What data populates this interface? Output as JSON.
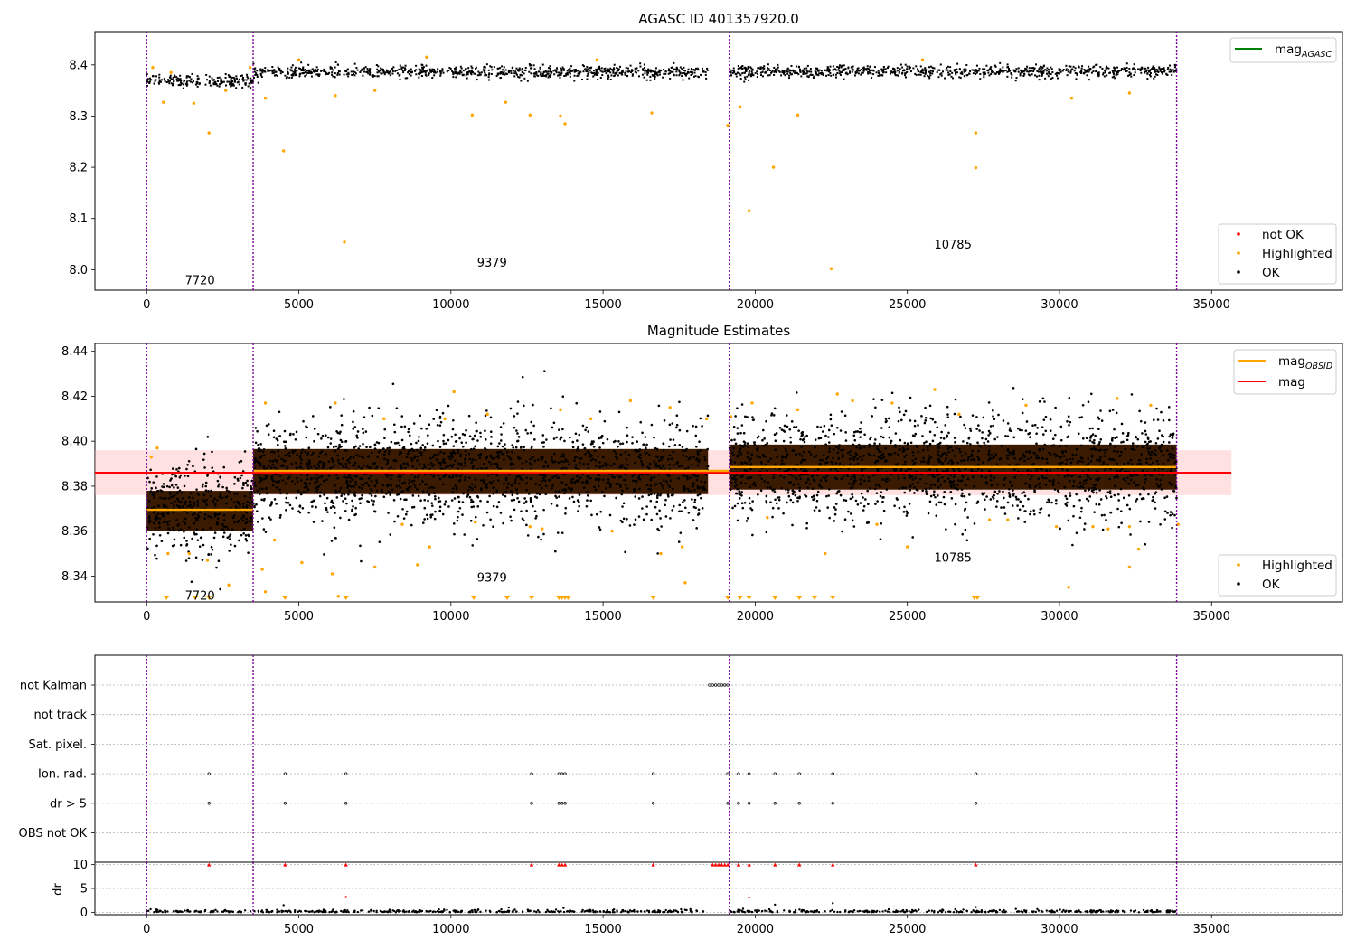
{
  "chart_data": [
    {
      "type": "scatter",
      "title": "AGASC ID 401357920.0",
      "xlabel": "",
      "ylabel": "",
      "xlim": [
        -1700,
        39300
      ],
      "ylim": [
        7.96,
        8.465
      ],
      "xticks": [
        0,
        5000,
        10000,
        15000,
        20000,
        25000,
        30000,
        35000
      ],
      "yticks": [
        8.0,
        8.1,
        8.2,
        8.3,
        8.4
      ],
      "ytick_labels": [
        "8.0",
        "8.1",
        "8.2",
        "8.3",
        "8.4"
      ],
      "obs_boundaries": [
        0,
        3500,
        19150,
        33850
      ],
      "obs_labels": [
        {
          "x": 1750,
          "y": 7.98,
          "text": "7720"
        },
        {
          "x": 11350,
          "y": 8.015,
          "text": "9379"
        },
        {
          "x": 26500,
          "y": 8.05,
          "text": "10785"
        }
      ],
      "legend_top": [
        {
          "label": "mag",
          "sub": "AGASC",
          "color": "#008000",
          "kind": "line"
        }
      ],
      "legend_bottom": [
        {
          "label": "not OK",
          "color": "#ff0000",
          "kind": "dot"
        },
        {
          "label": "Highlighted",
          "color": "#ffa500",
          "kind": "dot"
        },
        {
          "label": "OK",
          "color": "#000000",
          "kind": "dot"
        }
      ],
      "segments": [
        {
          "x0": 0,
          "x1": 3500,
          "mean": 8.369,
          "spread": 0.011
        },
        {
          "x0": 3500,
          "x1": 18450,
          "mean": 8.386,
          "spread": 0.011
        },
        {
          "x0": 19150,
          "x1": 33850,
          "mean": 8.387,
          "spread": 0.011
        }
      ],
      "highlighted": [
        [
          200,
          8.395
        ],
        [
          550,
          8.327
        ],
        [
          800,
          8.385
        ],
        [
          1550,
          8.325
        ],
        [
          2050,
          8.267
        ],
        [
          2600,
          8.35
        ],
        [
          3400,
          8.395
        ],
        [
          4500,
          8.232
        ],
        [
          3900,
          8.335
        ],
        [
          6500,
          8.054
        ],
        [
          6200,
          8.34
        ],
        [
          7500,
          8.35
        ],
        [
          10700,
          8.302
        ],
        [
          11800,
          8.327
        ],
        [
          12600,
          8.302
        ],
        [
          13600,
          8.3
        ],
        [
          13750,
          8.285
        ],
        [
          16600,
          8.306
        ],
        [
          19100,
          8.282
        ],
        [
          19500,
          8.318
        ],
        [
          19800,
          8.115
        ],
        [
          20600,
          8.2
        ],
        [
          21400,
          8.302
        ],
        [
          22500,
          8.002
        ],
        [
          27250,
          8.267
        ],
        [
          27250,
          8.199
        ],
        [
          30400,
          8.335
        ],
        [
          32300,
          8.345
        ],
        [
          5000,
          8.41
        ],
        [
          9200,
          8.415
        ],
        [
          14800,
          8.41
        ],
        [
          25500,
          8.41
        ]
      ]
    },
    {
      "type": "scatter",
      "title": "Magnitude Estimates",
      "xlabel": "",
      "ylabel": "",
      "xlim": [
        -1700,
        39300
      ],
      "ylim": [
        8.3285,
        8.4435
      ],
      "xticks": [
        0,
        5000,
        10000,
        15000,
        20000,
        25000,
        30000,
        35000
      ],
      "yticks": [
        8.34,
        8.36,
        8.38,
        8.4,
        8.42,
        8.44
      ],
      "ytick_labels": [
        "8.34",
        "8.36",
        "8.38",
        "8.40",
        "8.42",
        "8.44"
      ],
      "obs_boundaries": [
        0,
        3500,
        19150,
        33850
      ],
      "obs_labels": [
        {
          "x": 1750,
          "y": 8.3315,
          "text": "7720"
        },
        {
          "x": 11350,
          "y": 8.3395,
          "text": "9379"
        },
        {
          "x": 26500,
          "y": 8.3485,
          "text": "10785"
        }
      ],
      "mag": 8.386,
      "mag_band": [
        8.376,
        8.396
      ],
      "mag_band_x": [
        -1700,
        35650
      ],
      "mag_obsid": [
        {
          "x0": 0,
          "x1": 3500,
          "y": 8.3695
        },
        {
          "x0": 3500,
          "x1": 19150,
          "y": 8.3868
        },
        {
          "x0": 19150,
          "x1": 33850,
          "y": 8.3885
        }
      ],
      "legend_top": [
        {
          "label": "mag",
          "sub": "OBSID",
          "color": "#ffa500",
          "kind": "line"
        },
        {
          "label": "mag",
          "sub": "",
          "color": "#ff0000",
          "kind": "line"
        }
      ],
      "legend_bottom": [
        {
          "label": "Highlighted",
          "color": "#ffa500",
          "kind": "dot"
        },
        {
          "label": "OK",
          "color": "#000000",
          "kind": "dot"
        }
      ],
      "segments": [
        {
          "x0": 0,
          "x1": 3500,
          "mean": 8.369,
          "spread": 0.0105
        },
        {
          "x0": 3500,
          "x1": 18450,
          "mean": 8.3865,
          "spread": 0.0118
        },
        {
          "x0": 19150,
          "x1": 33850,
          "mean": 8.3885,
          "spread": 0.0118
        }
      ],
      "highlighted": [
        [
          150,
          8.393
        ],
        [
          350,
          8.397
        ],
        [
          700,
          8.35
        ],
        [
          1400,
          8.35
        ],
        [
          2000,
          8.347
        ],
        [
          2700,
          8.336
        ],
        [
          3900,
          8.417
        ],
        [
          3800,
          8.343
        ],
        [
          3900,
          8.333
        ],
        [
          4200,
          8.356
        ],
        [
          5100,
          8.346
        ],
        [
          6100,
          8.341
        ],
        [
          6300,
          8.331
        ],
        [
          6200,
          8.417
        ],
        [
          7500,
          8.344
        ],
        [
          7800,
          8.41
        ],
        [
          8400,
          8.363
        ],
        [
          8900,
          8.345
        ],
        [
          9300,
          8.353
        ],
        [
          9800,
          8.41
        ],
        [
          10100,
          8.422
        ],
        [
          10800,
          8.364
        ],
        [
          11200,
          8.412
        ],
        [
          12600,
          8.362
        ],
        [
          13000,
          8.361
        ],
        [
          13600,
          8.414
        ],
        [
          14600,
          8.41
        ],
        [
          15300,
          8.36
        ],
        [
          15900,
          8.418
        ],
        [
          16900,
          8.35
        ],
        [
          17200,
          8.415
        ],
        [
          17600,
          8.353
        ],
        [
          17700,
          8.337
        ],
        [
          18400,
          8.41
        ],
        [
          19200,
          8.411
        ],
        [
          19900,
          8.417
        ],
        [
          20400,
          8.366
        ],
        [
          21400,
          8.414
        ],
        [
          22300,
          8.35
        ],
        [
          22700,
          8.421
        ],
        [
          23200,
          8.418
        ],
        [
          24000,
          8.363
        ],
        [
          24500,
          8.417
        ],
        [
          25000,
          8.353
        ],
        [
          25900,
          8.423
        ],
        [
          26700,
          8.412
        ],
        [
          27700,
          8.365
        ],
        [
          28300,
          8.365
        ],
        [
          28900,
          8.416
        ],
        [
          29900,
          8.362
        ],
        [
          30300,
          8.335
        ],
        [
          31100,
          8.362
        ],
        [
          31600,
          8.361
        ],
        [
          31900,
          8.419
        ],
        [
          32300,
          8.362
        ],
        [
          32300,
          8.344
        ],
        [
          32600,
          8.352
        ],
        [
          33000,
          8.416
        ],
        [
          33900,
          8.363
        ]
      ],
      "down_markers": [
        650,
        1600,
        2050,
        4550,
        6550,
        10750,
        11850,
        12650,
        13550,
        13650,
        13750,
        13850,
        16650,
        19100,
        19500,
        19800,
        20650,
        21450,
        21950,
        22550,
        27200,
        27300
      ]
    },
    {
      "type": "scatter",
      "title": "",
      "xlabel": "",
      "ylabel": "",
      "xlim": [
        -1700,
        39300
      ],
      "xticks": [
        0,
        5000,
        10000,
        15000,
        20000,
        25000,
        30000,
        35000
      ],
      "obs_boundaries": [
        0,
        3500,
        19150,
        33850
      ],
      "flags": [
        {
          "label": "not Kalman",
          "x": [
            18500,
            18600,
            18700,
            18800,
            18900,
            19000,
            19100
          ]
        },
        {
          "label": "not track",
          "x": []
        },
        {
          "label": "Sat. pixel.",
          "x": []
        },
        {
          "label": "Ion. rad.",
          "x": [
            2050,
            4550,
            6550,
            12650,
            13550,
            13650,
            13750,
            16650,
            19100,
            19450,
            19800,
            20650,
            21450,
            22550,
            27250
          ]
        },
        {
          "label": "dr > 5",
          "x": [
            2050,
            4550,
            6550,
            12650,
            13550,
            13650,
            13750,
            16650,
            19100,
            19450,
            19800,
            20650,
            21450,
            22550,
            27250
          ]
        },
        {
          "label": "OBS not OK",
          "x": []
        }
      ]
    },
    {
      "type": "scatter",
      "title": "",
      "xlabel": "",
      "ylabel": "dr",
      "xlim": [
        -1700,
        39300
      ],
      "ylim": [
        -0.5,
        10.5
      ],
      "xticks": [
        0,
        5000,
        10000,
        15000,
        20000,
        25000,
        30000,
        35000
      ],
      "xtick_labels": [
        "0",
        "5000",
        "10000",
        "15000",
        "20000",
        "25000",
        "30000",
        "35000"
      ],
      "yticks": [
        0,
        5,
        10
      ],
      "ytick_labels": [
        "0",
        "5",
        "10"
      ],
      "obs_boundaries": [
        0,
        3500,
        19150,
        33850
      ],
      "clipped_x": [
        2050,
        4550,
        6550,
        12650,
        13550,
        13650,
        13750,
        16650,
        18600,
        18700,
        18800,
        18900,
        19000,
        19100,
        19450,
        19800,
        20650,
        21450,
        22550,
        27250
      ],
      "outliers": [
        [
          4500,
          1.5
        ],
        [
          6550,
          3.2
        ],
        [
          19800,
          3.1
        ],
        [
          20650,
          1.6
        ],
        [
          22550,
          1.9
        ],
        [
          27250,
          1.1
        ],
        [
          11900,
          1.0
        ],
        [
          13700,
          0.9
        ]
      ],
      "ok_range": [
        [
          0,
          18500
        ],
        [
          19150,
          33850
        ]
      ]
    }
  ]
}
